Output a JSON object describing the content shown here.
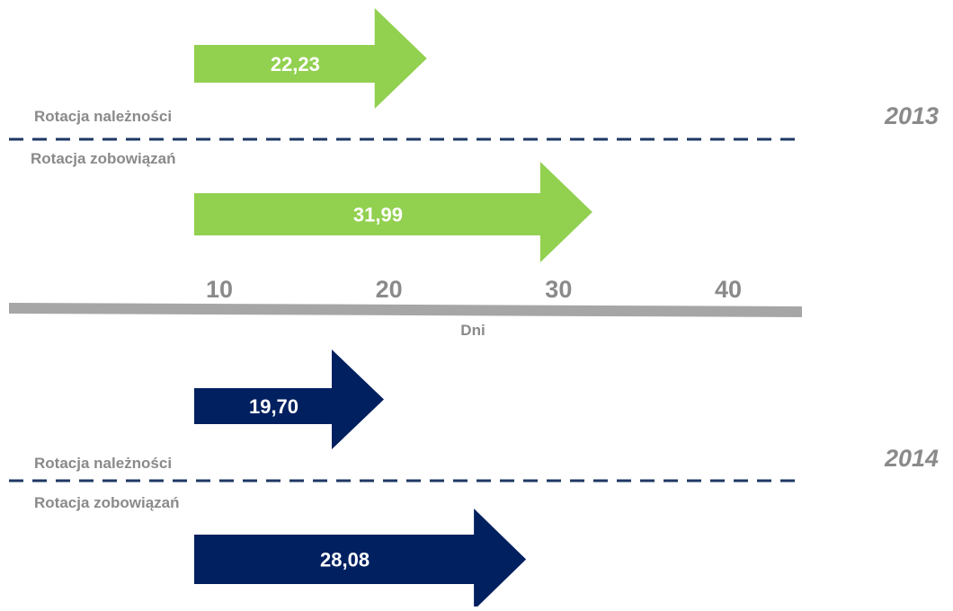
{
  "chart_data": {
    "type": "bar",
    "orientation": "horizontal",
    "x_axis": {
      "label": "Dni",
      "ticks": [
        10,
        20,
        30,
        40
      ],
      "tick_labels": [
        "10",
        "20",
        "30",
        "40"
      ]
    },
    "series": [
      {
        "name": "2013",
        "color": "#92d050",
        "bars": [
          {
            "category": "Rotacja należności",
            "value": 22.23,
            "label": "22,23"
          },
          {
            "category": "Rotacja zobowiązań",
            "value": 31.99,
            "label": "31,99"
          }
        ]
      },
      {
        "name": "2014",
        "color": "#002060",
        "bars": [
          {
            "category": "Rotacja należności",
            "value": 19.7,
            "label": "19,70"
          },
          {
            "category": "Rotacja zobowiązań",
            "value": 28.08,
            "label": "28,08"
          }
        ]
      }
    ],
    "colors": {
      "axis": "#a6a6a6",
      "text": "#8a8a8a",
      "divider": "#1f3864",
      "value_text": "#ffffff"
    }
  }
}
